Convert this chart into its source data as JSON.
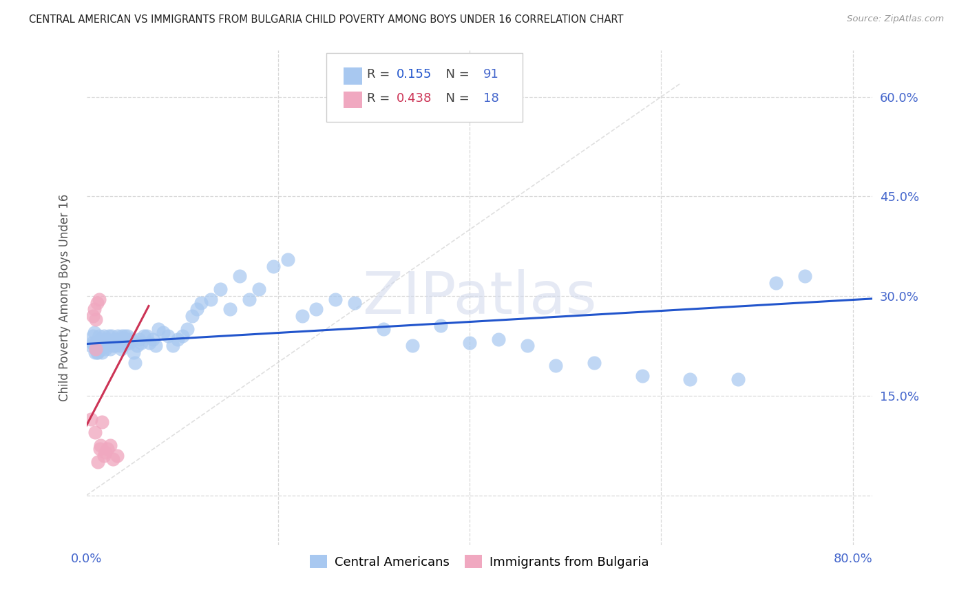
{
  "title": "CENTRAL AMERICAN VS IMMIGRANTS FROM BULGARIA CHILD POVERTY AMONG BOYS UNDER 16 CORRELATION CHART",
  "source": "Source: ZipAtlas.com",
  "ylabel": "Child Poverty Among Boys Under 16",
  "xlim": [
    0.0,
    0.82
  ],
  "ylim": [
    -0.075,
    0.67
  ],
  "yticks": [
    0.0,
    0.15,
    0.3,
    0.45,
    0.6
  ],
  "right_ytick_labels": [
    "",
    "15.0%",
    "30.0%",
    "45.0%",
    "60.0%"
  ],
  "xticks": [
    0.0,
    0.2,
    0.4,
    0.6,
    0.8
  ],
  "xtick_labels": [
    "0.0%",
    "",
    "",
    "",
    "80.0%"
  ],
  "r_central": 0.155,
  "n_central": 91,
  "r_bulgaria": 0.438,
  "n_bulgaria": 18,
  "central_color": "#a8c8f0",
  "bulgaria_color": "#f0a8c0",
  "line_central_color": "#2255cc",
  "line_bulgaria_color": "#cc3355",
  "diag_color": "#d8d8d8",
  "bg_color": "#ffffff",
  "grid_color": "#d8d8d8",
  "title_color": "#222222",
  "ylabel_color": "#555555",
  "tick_color": "#4466cc",
  "watermark_color": "#d0d8ec",
  "legend_r_blue": "#2255cc",
  "legend_n_blue": "#4466cc",
  "legend_r_pink": "#cc3355",
  "legend_n_pink": "#4466cc",
  "ca_x": [
    0.005,
    0.006,
    0.007,
    0.008,
    0.008,
    0.009,
    0.01,
    0.01,
    0.011,
    0.011,
    0.012,
    0.012,
    0.013,
    0.013,
    0.014,
    0.015,
    0.015,
    0.016,
    0.017,
    0.018,
    0.019,
    0.02,
    0.021,
    0.022,
    0.023,
    0.024,
    0.025,
    0.026,
    0.027,
    0.028,
    0.029,
    0.03,
    0.032,
    0.033,
    0.034,
    0.035,
    0.036,
    0.037,
    0.038,
    0.039,
    0.04,
    0.041,
    0.042,
    0.043,
    0.045,
    0.047,
    0.049,
    0.051,
    0.053,
    0.055,
    0.057,
    0.06,
    0.063,
    0.066,
    0.069,
    0.072,
    0.075,
    0.08,
    0.085,
    0.09,
    0.095,
    0.1,
    0.105,
    0.11,
    0.115,
    0.12,
    0.13,
    0.14,
    0.15,
    0.16,
    0.17,
    0.18,
    0.195,
    0.21,
    0.225,
    0.24,
    0.26,
    0.28,
    0.31,
    0.34,
    0.37,
    0.4,
    0.43,
    0.46,
    0.49,
    0.53,
    0.58,
    0.63,
    0.68,
    0.72,
    0.75
  ],
  "ca_y": [
    0.225,
    0.23,
    0.24,
    0.245,
    0.225,
    0.215,
    0.22,
    0.23,
    0.215,
    0.225,
    0.22,
    0.215,
    0.24,
    0.225,
    0.23,
    0.22,
    0.235,
    0.215,
    0.23,
    0.24,
    0.225,
    0.22,
    0.235,
    0.225,
    0.24,
    0.23,
    0.22,
    0.24,
    0.23,
    0.225,
    0.235,
    0.225,
    0.23,
    0.24,
    0.235,
    0.225,
    0.22,
    0.24,
    0.23,
    0.235,
    0.24,
    0.235,
    0.23,
    0.24,
    0.23,
    0.235,
    0.215,
    0.2,
    0.225,
    0.235,
    0.23,
    0.24,
    0.24,
    0.23,
    0.235,
    0.225,
    0.25,
    0.245,
    0.24,
    0.225,
    0.235,
    0.24,
    0.25,
    0.27,
    0.28,
    0.29,
    0.295,
    0.31,
    0.28,
    0.33,
    0.295,
    0.31,
    0.345,
    0.355,
    0.27,
    0.28,
    0.295,
    0.29,
    0.25,
    0.225,
    0.255,
    0.23,
    0.235,
    0.225,
    0.195,
    0.2,
    0.18,
    0.175,
    0.175,
    0.32,
    0.33
  ],
  "bg_x": [
    0.005,
    0.007,
    0.008,
    0.009,
    0.01,
    0.01,
    0.011,
    0.012,
    0.013,
    0.014,
    0.015,
    0.016,
    0.018,
    0.02,
    0.022,
    0.025,
    0.028,
    0.032
  ],
  "bg_y": [
    0.115,
    0.27,
    0.28,
    0.095,
    0.22,
    0.265,
    0.29,
    0.05,
    0.295,
    0.07,
    0.075,
    0.11,
    0.06,
    0.065,
    0.07,
    0.075,
    0.055,
    0.06
  ]
}
